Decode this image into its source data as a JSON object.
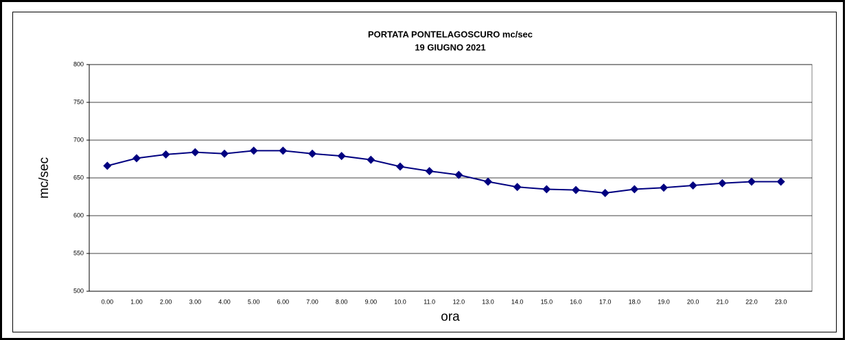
{
  "chart_data": {
    "type": "line",
    "title": "PORTATA PONTELAGOSCURO mc/sec",
    "subtitle": "19 GIUGNO 2021",
    "x_label": "ora",
    "y_label": "mc/sec",
    "categories": [
      "0.00",
      "1.00",
      "2.00",
      "3.00",
      "4.00",
      "5.00",
      "6.00",
      "7.00",
      "8.00",
      "9.00",
      "10.0",
      "11.0",
      "12.0",
      "13.0",
      "14.0",
      "15.0",
      "16.0",
      "17.0",
      "18.0",
      "19.0",
      "20.0",
      "21.0",
      "22.0",
      "23.0"
    ],
    "series": [
      {
        "name": "PORTATA",
        "color": "#000080",
        "values": [
          666,
          676,
          681,
          684,
          682,
          686,
          686,
          682,
          679,
          674,
          665,
          659,
          654,
          645,
          638,
          635,
          634,
          630,
          635,
          637,
          640,
          643,
          645,
          645
        ]
      }
    ],
    "ylim": [
      500,
      800
    ],
    "yticks": [
      500,
      550,
      600,
      650,
      700,
      750,
      800
    ],
    "grid": true
  }
}
